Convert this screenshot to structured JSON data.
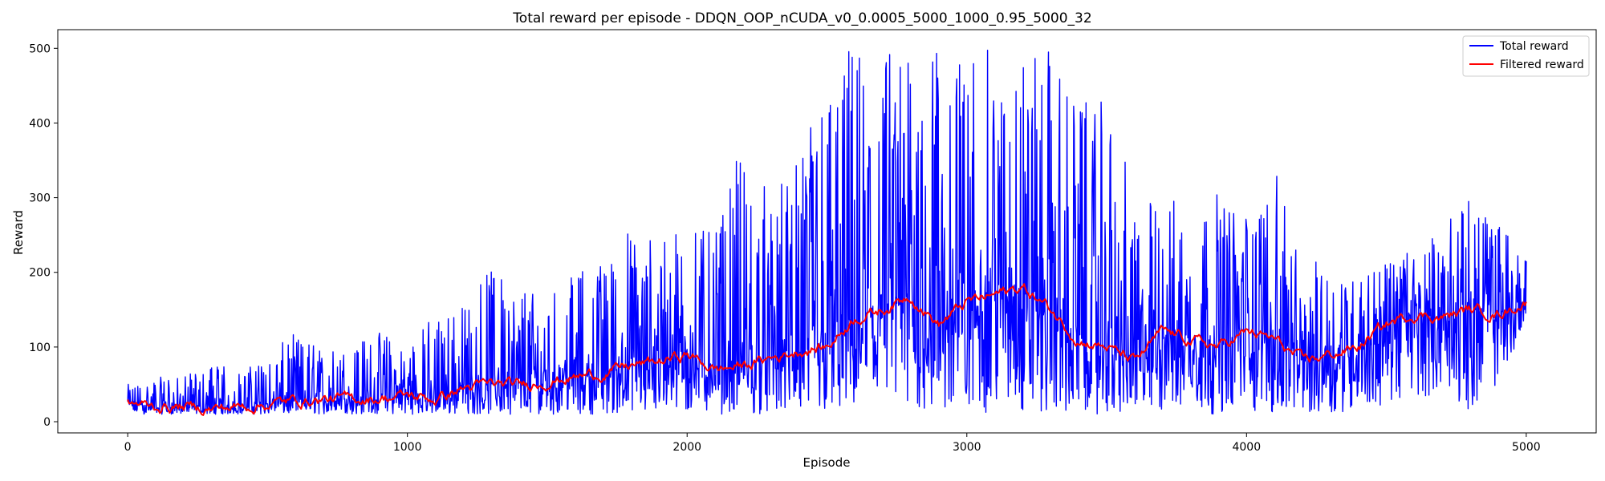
{
  "chart_data": {
    "type": "line",
    "title": "Total reward per episode - DDQN_OOP_nCUDA_v0_0.0005_5000_1000_0.95_5000_32",
    "xlabel": "Episode",
    "ylabel": "Reward",
    "xlim": [
      -250,
      5250
    ],
    "ylim": [
      -15,
      525
    ],
    "xticks": [
      0,
      1000,
      2000,
      3000,
      4000,
      5000
    ],
    "yticks": [
      0,
      100,
      200,
      300,
      400,
      500
    ],
    "grid": false,
    "legend": {
      "placement": "top-right",
      "entries": [
        "Total reward",
        "Filtered reward"
      ]
    },
    "series": [
      {
        "name": "Total reward",
        "color": "#0000ff",
        "note_values": "raw per-episode reward; envelope sampled every 100 episodes",
        "x": [
          0,
          100,
          200,
          300,
          400,
          500,
          600,
          700,
          800,
          900,
          1000,
          1100,
          1200,
          1300,
          1400,
          1500,
          1600,
          1700,
          1800,
          1900,
          2000,
          2100,
          2200,
          2300,
          2400,
          2500,
          2600,
          2700,
          2800,
          2900,
          3000,
          3100,
          3200,
          3300,
          3400,
          3500,
          3600,
          3700,
          3800,
          3900,
          4000,
          4100,
          4200,
          4300,
          4400,
          4500,
          4600,
          4700,
          4800,
          4900,
          5000
        ],
        "min": [
          10,
          10,
          10,
          10,
          10,
          10,
          10,
          10,
          10,
          10,
          10,
          10,
          10,
          10,
          10,
          10,
          10,
          10,
          10,
          10,
          10,
          10,
          10,
          10,
          10,
          10,
          10,
          10,
          10,
          10,
          10,
          10,
          10,
          10,
          10,
          10,
          10,
          10,
          10,
          10,
          12,
          10,
          10,
          12,
          15,
          20,
          30,
          40,
          15,
          50,
          130
        ],
        "max": [
          50,
          60,
          60,
          80,
          70,
          90,
          120,
          100,
          110,
          120,
          120,
          140,
          160,
          210,
          190,
          170,
          200,
          220,
          260,
          260,
          270,
          250,
          380,
          300,
          350,
          500,
          500,
          500,
          500,
          500,
          500,
          500,
          500,
          500,
          430,
          430,
          310,
          300,
          300,
          310,
          290,
          340,
          200,
          230,
          200,
          220,
          230,
          260,
          300,
          270,
          240
        ]
      },
      {
        "name": "Filtered reward",
        "color": "#ff0000",
        "note_values": "smoothed reward sampled every 100 episodes",
        "x": [
          0,
          100,
          200,
          300,
          400,
          500,
          600,
          700,
          800,
          900,
          1000,
          1100,
          1200,
          1300,
          1400,
          1500,
          1600,
          1700,
          1800,
          1900,
          2000,
          2100,
          2200,
          2300,
          2400,
          2500,
          2600,
          2700,
          2800,
          2900,
          3000,
          3100,
          3200,
          3300,
          3400,
          3500,
          3600,
          3700,
          3800,
          3900,
          4000,
          4100,
          4200,
          4300,
          4400,
          4500,
          4600,
          4700,
          4800,
          4900,
          5000
        ],
        "y": [
          25,
          20,
          20,
          18,
          20,
          24,
          28,
          30,
          30,
          32,
          35,
          30,
          45,
          50,
          48,
          55,
          60,
          65,
          75,
          80,
          90,
          70,
          75,
          85,
          95,
          100,
          140,
          150,
          170,
          130,
          160,
          170,
          180,
          150,
          110,
          100,
          80,
          120,
          110,
          100,
          120,
          110,
          80,
          90,
          100,
          130,
          145,
          140,
          150,
          145,
          160
        ]
      }
    ]
  }
}
